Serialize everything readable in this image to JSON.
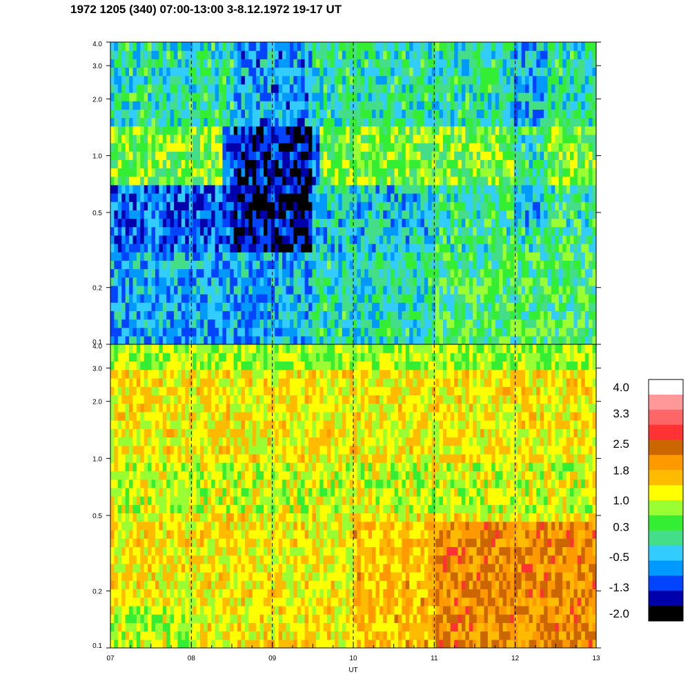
{
  "chart_data": {
    "type": "heatmap",
    "title": "1972 1205 (340) 07:00-13:00 3-8.12.1972  19-17 UT",
    "xlabel": "UT",
    "x_ticks": [
      "07",
      "08",
      "09",
      "10",
      "11",
      "12",
      "13"
    ],
    "x_range": [
      7,
      13
    ],
    "y_scale": "log",
    "y_range": [
      0.1,
      4.0
    ],
    "y_ticks": [
      0.1,
      0.2,
      0.5,
      1.0,
      2.0,
      3.0,
      4.0
    ],
    "y_tick_labels": [
      "0.1",
      "0.2",
      "0.5",
      "1.0",
      "2.0",
      "3.0",
      "4.0"
    ],
    "grid": "dashed vertical lines at each hour",
    "panels": [
      {
        "id": "upper",
        "dominant_colors": [
          "#33cc33",
          "#33ccff",
          "#0066ff",
          "#ffff00"
        ]
      },
      {
        "id": "lower",
        "dominant_colors": [
          "#ffbb00",
          "#ff9900",
          "#ffff00",
          "#99ff33"
        ]
      }
    ],
    "colorbar": {
      "labels": [
        "4.0",
        "3.3",
        "2.5",
        "1.8",
        "1.0",
        "0.3",
        "-0.5",
        "-1.3",
        "-2.0"
      ],
      "range": [
        -2.0,
        4.0
      ],
      "colors": [
        "#ffffff",
        "#ff9999",
        "#ff6666",
        "#ff3333",
        "#cc6600",
        "#ff9900",
        "#ffbb00",
        "#ffff00",
        "#99ff33",
        "#33ee33",
        "#44dd88",
        "#33ccff",
        "#0099ff",
        "#0044ff",
        "#0000aa",
        "#000000"
      ]
    }
  }
}
